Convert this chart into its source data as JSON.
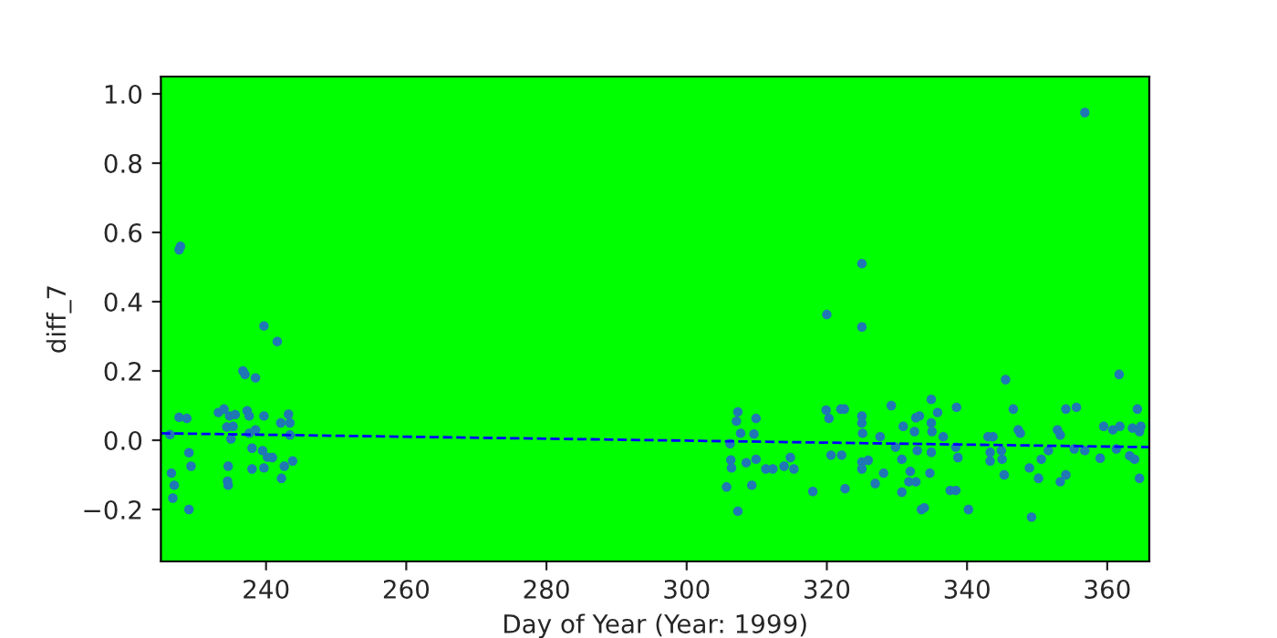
{
  "chart_data": {
    "type": "scatter",
    "xlabel": "Day of Year (Year: 1999)",
    "ylabel": "diff_7",
    "xlim": [
      225,
      366
    ],
    "ylim": [
      -0.35,
      1.05
    ],
    "xticks": [
      240,
      260,
      280,
      300,
      320,
      340,
      360
    ],
    "yticks": [
      {
        "value": -0.2,
        "label": "−0.2"
      },
      {
        "value": 0,
        "label": "0.0"
      },
      {
        "value": 0.2,
        "label": "0.2"
      },
      {
        "value": 0.4,
        "label": "0.4"
      },
      {
        "value": 0.6,
        "label": "0.6"
      },
      {
        "value": 0.8,
        "label": "0.8"
      },
      {
        "value": 1,
        "label": "1.0"
      }
    ],
    "grid": false,
    "series": [
      {
        "marker": "circle",
        "color": "#1f77b4",
        "x": [
          227.6,
          227.8,
          239.7,
          241.6,
          236.7,
          237.0,
          238.5,
          227.6,
          228.7,
          226.3,
          229.0,
          229.3,
          226.5,
          226.9,
          226.7,
          229.0,
          234.5,
          234.6,
          234.6,
          238.0,
          239.7,
          240.2,
          240.9,
          242.2,
          242.6,
          243.8,
          238.0,
          239.5,
          233.2,
          234.0,
          234.8,
          235.6,
          237.3,
          237.6,
          234.4,
          235.0,
          235.3,
          237.6,
          238.5,
          239.7,
          242.1,
          243.2,
          243.4,
          243.4,
          325.0,
          320.0,
          325.0,
          305.7,
          307.3,
          307.1,
          307.7,
          306.2,
          306.3,
          306.4,
          307.3,
          308.5,
          309.3,
          309.6,
          309.9,
          309.9,
          311.3,
          312.3,
          313.9,
          314.8,
          315.3,
          318.0,
          319.9,
          320.3,
          320.6,
          322.1,
          322.0,
          322.5,
          322.6,
          325.0,
          325.0,
          325.1,
          325.0,
          325.0,
          325.9,
          326.9,
          328.1,
          327.6,
          329.2,
          329.8,
          330.7,
          330.9,
          332.5,
          332.7,
          331.7,
          330.7,
          331.9,
          333.5,
          356.8,
          345.5,
          361.7,
          334.9,
          333.2,
          335.8,
          338.5,
          334.9,
          335.0,
          336.6,
          332.9,
          332.7,
          333.9,
          334.9,
          334.7,
          337.6,
          338.4,
          338.4,
          338.7,
          340.2,
          343.0,
          343.7,
          343.3,
          343.3,
          344.9,
          345.0,
          345.3,
          346.6,
          347.3,
          347.6,
          348.9,
          349.2,
          350.2,
          350.6,
          351.6,
          352.9,
          353.3,
          353.3,
          354.1,
          354.1,
          355.6,
          355.3,
          356.8,
          359.0,
          359.5,
          360.8,
          361.8,
          361.3,
          363.2,
          363.9,
          363.6,
          364.6,
          364.8,
          364.3,
          364.6
        ],
        "values": [
          0.55,
          0.56,
          0.33,
          0.285,
          0.2,
          0.19,
          0.18,
          0.066,
          0.063,
          0.016,
          -0.036,
          -0.075,
          -0.095,
          -0.13,
          -0.167,
          -0.2,
          -0.118,
          -0.13,
          -0.075,
          -0.083,
          -0.08,
          -0.049,
          -0.05,
          -0.11,
          -0.075,
          -0.06,
          -0.023,
          -0.03,
          0.08,
          0.09,
          0.07,
          0.074,
          0.085,
          0.07,
          0.038,
          0.004,
          0.04,
          0.02,
          0.03,
          0.07,
          0.05,
          0.075,
          0.05,
          0.015,
          0.51,
          0.363,
          0.327,
          -0.135,
          0.082,
          0.055,
          0.02,
          -0.01,
          -0.057,
          -0.08,
          -0.205,
          -0.065,
          -0.13,
          0.018,
          0.063,
          -0.055,
          -0.083,
          -0.083,
          -0.075,
          -0.05,
          -0.083,
          -0.148,
          0.087,
          0.063,
          -0.043,
          -0.043,
          0.09,
          0.09,
          -0.14,
          0.07,
          0.05,
          0.02,
          -0.063,
          -0.083,
          -0.058,
          -0.125,
          -0.095,
          0.01,
          0.1,
          -0.02,
          -0.055,
          0.04,
          0.025,
          0.065,
          -0.12,
          -0.15,
          -0.09,
          -0.2,
          0.946,
          0.175,
          0.19,
          0.118,
          0.07,
          0.08,
          0.095,
          0.05,
          0.025,
          0.01,
          -0.03,
          -0.12,
          -0.195,
          -0.035,
          -0.095,
          -0.145,
          -0.145,
          -0.02,
          -0.05,
          -0.2,
          0.01,
          0.01,
          -0.035,
          -0.06,
          -0.03,
          -0.055,
          -0.1,
          0.09,
          0.03,
          0.02,
          -0.08,
          -0.222,
          -0.11,
          -0.055,
          -0.03,
          0.03,
          0.015,
          -0.12,
          -0.1,
          0.09,
          0.095,
          -0.025,
          -0.03,
          -0.052,
          0.04,
          0.03,
          0.04,
          -0.025,
          -0.045,
          -0.055,
          0.035,
          0.025,
          0.04,
          0.09,
          -0.11
        ]
      },
      {
        "type": "line",
        "color": "#0000ff",
        "line_style": "dashed",
        "x": [
          225,
          366
        ],
        "values": [
          0.02,
          -0.02
        ]
      }
    ]
  }
}
